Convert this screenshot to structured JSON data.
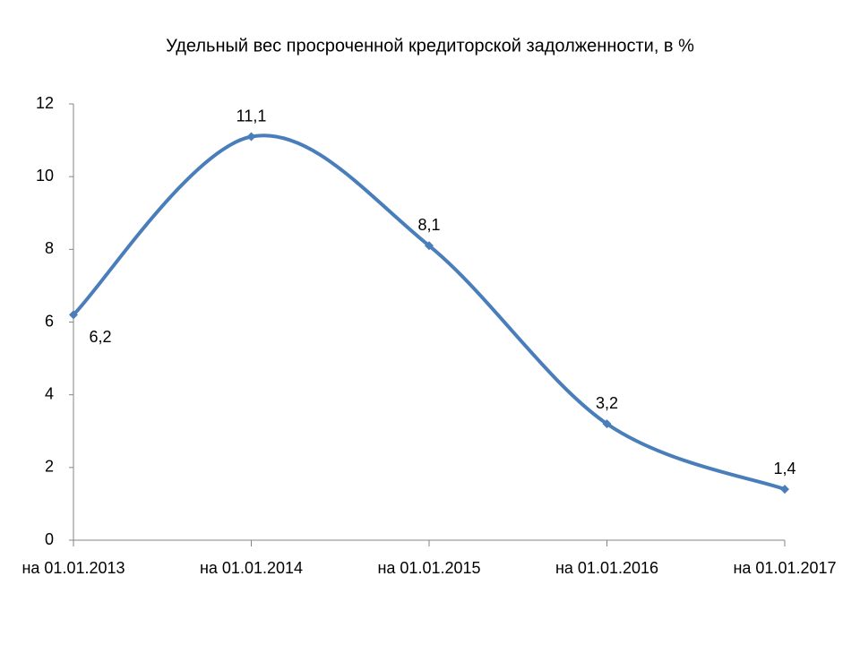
{
  "chart_data": {
    "type": "line",
    "title": "Удельный вес просроченной кредиторской задолженности, в %",
    "categories": [
      "на 01.01.2013",
      "на 01.01.2014",
      "на 01.01.2015",
      "на 01.01.2016",
      "на 01.01.2017"
    ],
    "values": [
      6.2,
      11.1,
      8.1,
      3.2,
      1.4
    ],
    "value_labels": [
      "6,2",
      "11,1",
      "8,1",
      "3,2",
      "1,4"
    ],
    "color": "#4a7ebb",
    "smooth": true,
    "grid": false,
    "ylim": [
      0,
      12
    ],
    "yticks": [
      0,
      2,
      4,
      6,
      8,
      10,
      12
    ]
  }
}
